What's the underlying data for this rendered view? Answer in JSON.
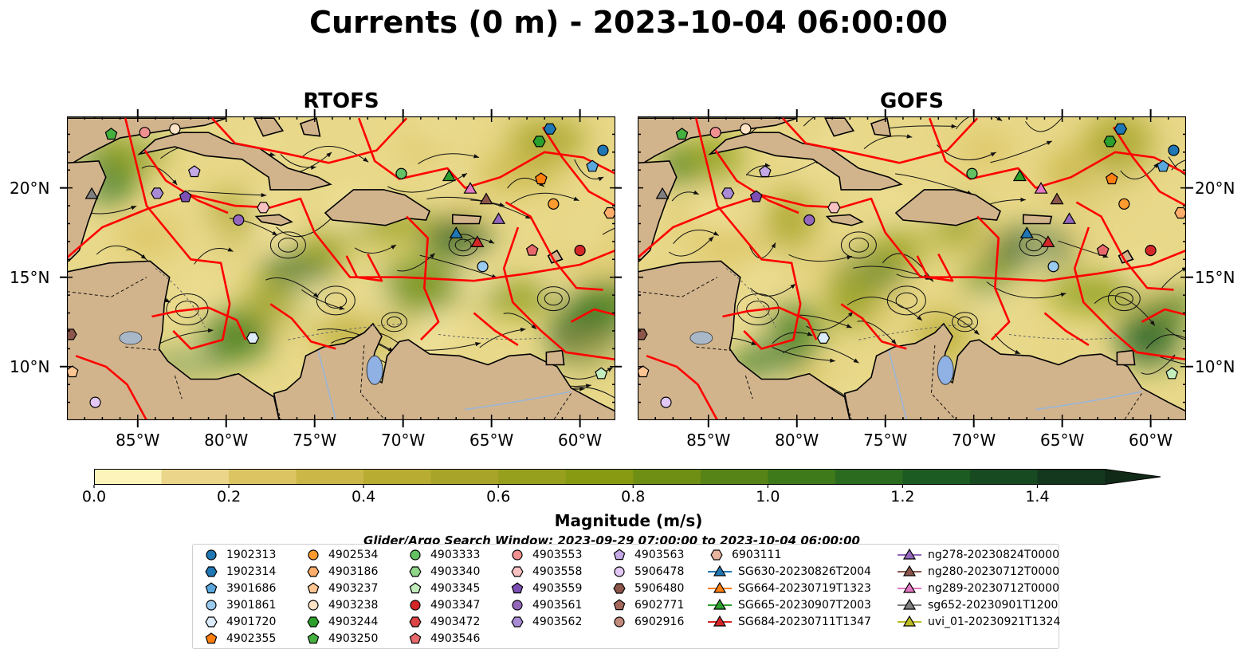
{
  "title": "Currents (0 m) - 2023-10-04 06:00:00",
  "panels": [
    {
      "title": "RTOFS"
    },
    {
      "title": "GOFS"
    }
  ],
  "map": {
    "lon_range": [
      -89,
      -58
    ],
    "lat_range": [
      7,
      24
    ],
    "xticks": [
      "85°W",
      "80°W",
      "75°W",
      "70°W",
      "65°W",
      "60°W"
    ],
    "xtick_values": [
      -85,
      -80,
      -75,
      -70,
      -65,
      -60
    ],
    "yticks": [
      "20°N",
      "15°N",
      "10°N"
    ],
    "ytick_values": [
      20,
      15,
      10
    ],
    "land_color": "#d2b48c",
    "track_color": "#ff0000"
  },
  "colorbar": {
    "title": "Magnitude (m/s)",
    "min": 0.0,
    "max": 1.5,
    "step": 0.1,
    "tick_labels": [
      "0.0",
      "0.2",
      "0.4",
      "0.6",
      "0.8",
      "1.0",
      "1.2",
      "1.4"
    ],
    "colors": [
      "#fcf4bb",
      "#ead58a",
      "#dcc463",
      "#cab748",
      "#b8ac33",
      "#a8a42a",
      "#97a01d",
      "#879a12",
      "#6f8f14",
      "#578417",
      "#3f7a1a",
      "#2b6b20",
      "#1c5c22",
      "#174a21",
      "#13381d",
      "#112a17"
    ]
  },
  "search_window": "Glider/Argo Search Window: 2023-09-29 07:00:00 to 2023-10-04 06:00:00",
  "legend": {
    "items": [
      {
        "label": "1902313",
        "marker": "circle",
        "color": "#1f77b4"
      },
      {
        "label": "1902314",
        "marker": "hexagon",
        "color": "#1f77b4"
      },
      {
        "label": "3901686",
        "marker": "pentagon",
        "color": "#5aa7dd"
      },
      {
        "label": "3901861",
        "marker": "circle",
        "color": "#9ccbf0"
      },
      {
        "label": "4901720",
        "marker": "hexagon",
        "color": "#dcecfa"
      },
      {
        "label": "4902355",
        "marker": "pentagon",
        "color": "#ff7f0e"
      },
      {
        "label": "4902534",
        "marker": "circle",
        "color": "#ff9a2e"
      },
      {
        "label": "4903186",
        "marker": "hexagon",
        "color": "#ffad6a"
      },
      {
        "label": "4903237",
        "marker": "pentagon",
        "color": "#ffc693"
      },
      {
        "label": "4903238",
        "marker": "circle",
        "color": "#ffe3c6"
      },
      {
        "label": "4903244",
        "marker": "hexagon",
        "color": "#2ca02c"
      },
      {
        "label": "4903250",
        "marker": "pentagon",
        "color": "#45b03e"
      },
      {
        "label": "4903333",
        "marker": "circle",
        "color": "#62c162"
      },
      {
        "label": "4903340",
        "marker": "hexagon",
        "color": "#8fd68a"
      },
      {
        "label": "4903345",
        "marker": "pentagon",
        "color": "#c4edbe"
      },
      {
        "label": "4903347",
        "marker": "circle",
        "color": "#d62728"
      },
      {
        "label": "4903472",
        "marker": "hexagon",
        "color": "#dd4445"
      },
      {
        "label": "4903546",
        "marker": "pentagon",
        "color": "#e8696b"
      },
      {
        "label": "4903553",
        "marker": "circle",
        "color": "#f09090"
      },
      {
        "label": "4903558",
        "marker": "hexagon",
        "color": "#f9c2c2"
      },
      {
        "label": "4903559",
        "marker": "pentagon",
        "color": "#7b4fb3"
      },
      {
        "label": "4903561",
        "marker": "circle",
        "color": "#9467bd"
      },
      {
        "label": "4903562",
        "marker": "hexagon",
        "color": "#a98bd5"
      },
      {
        "label": "4903563",
        "marker": "pentagon",
        "color": "#c4a9e6"
      },
      {
        "label": "5906478",
        "marker": "circle",
        "color": "#e3c8f5"
      },
      {
        "label": "5906480",
        "marker": "hexagon",
        "color": "#8c564b"
      },
      {
        "label": "6902771",
        "marker": "pentagon",
        "color": "#a4695c"
      },
      {
        "label": "6902916",
        "marker": "circle",
        "color": "#c28a7c"
      },
      {
        "label": "6903111",
        "marker": "hexagon",
        "color": "#e8b49f"
      },
      {
        "label": "SG630-20230826T2004",
        "marker": "triangle-line",
        "color": "#1f77b4"
      },
      {
        "label": "SG664-20230719T1323",
        "marker": "triangle-line",
        "color": "#ff7f0e"
      },
      {
        "label": "SG665-20230907T2003",
        "marker": "triangle-line",
        "color": "#2ca02c"
      },
      {
        "label": "SG684-20230711T1347",
        "marker": "triangle-line",
        "color": "#d62728"
      },
      {
        "label": "ng278-20230824T0000",
        "marker": "triangle-line",
        "color": "#9467bd"
      },
      {
        "label": "ng280-20230712T0000",
        "marker": "triangle-line",
        "color": "#8c564b"
      },
      {
        "label": "ng289-20230712T0000",
        "marker": "triangle-line",
        "color": "#e377c2"
      },
      {
        "label": "sg652-20230901T1200",
        "marker": "triangle-line",
        "color": "#7f7f7f"
      },
      {
        "label": "uvi_01-20230921T1324",
        "marker": "triangle-line",
        "color": "#bcbd22"
      }
    ]
  },
  "floats": [
    {
      "label": "1902313",
      "lon": -58.7,
      "lat": 22.1,
      "marker": "circle",
      "color": "#1f77b4"
    },
    {
      "label": "1902314",
      "lon": -61.7,
      "lat": 23.3,
      "marker": "hexagon",
      "color": "#1f77b4"
    },
    {
      "label": "3901686",
      "lon": -59.3,
      "lat": 21.2,
      "marker": "pentagon",
      "color": "#5aa7dd"
    },
    {
      "label": "3901861",
      "lon": -65.5,
      "lat": 15.6,
      "marker": "circle",
      "color": "#9ccbf0"
    },
    {
      "label": "4901720",
      "lon": -78.5,
      "lat": 11.6,
      "marker": "hexagon",
      "color": "#dcecfa"
    },
    {
      "label": "4902355",
      "lon": -62.2,
      "lat": 20.5,
      "marker": "pentagon",
      "color": "#ff7f0e"
    },
    {
      "label": "4902534",
      "lon": -61.5,
      "lat": 19.1,
      "marker": "circle",
      "color": "#ff9a2e"
    },
    {
      "label": "4903238",
      "lon": -82.9,
      "lat": 23.3,
      "marker": "circle",
      "color": "#ffe3c6"
    },
    {
      "label": "4903244",
      "lon": -62.3,
      "lat": 22.6,
      "marker": "hexagon",
      "color": "#2ca02c"
    },
    {
      "label": "4903250",
      "lon": -86.5,
      "lat": 23.0,
      "marker": "pentagon",
      "color": "#45b03e"
    },
    {
      "label": "4903333",
      "lon": -70.1,
      "lat": 20.8,
      "marker": "circle",
      "color": "#62c162"
    },
    {
      "label": "4903345",
      "lon": -58.8,
      "lat": 9.6,
      "marker": "pentagon",
      "color": "#c4edbe"
    },
    {
      "label": "4903347",
      "lon": -60.0,
      "lat": 16.5,
      "marker": "circle",
      "color": "#d62728"
    },
    {
      "label": "4903553",
      "lon": -84.6,
      "lat": 23.1,
      "marker": "circle",
      "color": "#f09090"
    },
    {
      "label": "4903558",
      "lon": -77.9,
      "lat": 18.9,
      "marker": "hexagon",
      "color": "#f9c2c2"
    },
    {
      "label": "4903559",
      "lon": -82.3,
      "lat": 19.5,
      "marker": "pentagon",
      "color": "#7b4fb3"
    },
    {
      "label": "4903561",
      "lon": -79.3,
      "lat": 18.2,
      "marker": "circle",
      "color": "#9467bd"
    },
    {
      "label": "4903563",
      "lon": -81.8,
      "lat": 20.9,
      "marker": "pentagon",
      "color": "#c4a9e6"
    },
    {
      "label": "4903546",
      "lon": -62.7,
      "lat": 16.5,
      "marker": "pentagon",
      "color": "#e8696b"
    },
    {
      "label": "5906478",
      "lon": -87.4,
      "lat": 8.0,
      "marker": "circle",
      "color": "#e3c8f5"
    },
    {
      "label": "4903186",
      "lon": -58.3,
      "lat": 18.6,
      "marker": "hexagon",
      "color": "#ffad6a"
    },
    {
      "label": "4903237",
      "lon": -88.7,
      "lat": 9.7,
      "marker": "pentagon",
      "color": "#ffc693"
    },
    {
      "label": "5906480",
      "lon": -88.8,
      "lat": 11.8,
      "marker": "hexagon",
      "color": "#8c564b"
    },
    {
      "label": "4903562",
      "lon": -83.9,
      "lat": 19.7,
      "marker": "hexagon",
      "color": "#a98bd5"
    }
  ],
  "gliders": [
    {
      "label": "SG630-20230826T2004",
      "lon": -67.0,
      "lat": 17.4,
      "color": "#1f77b4"
    },
    {
      "label": "SG665-20230907T2003",
      "lon": -67.4,
      "lat": 20.6,
      "color": "#2ca02c"
    },
    {
      "label": "ng289-20230712T0000",
      "lon": -66.2,
      "lat": 19.9,
      "color": "#e377c2"
    },
    {
      "label": "ng280-20230712T0000",
      "lon": -65.3,
      "lat": 19.3,
      "color": "#8c564b"
    },
    {
      "label": "ng278-20230824T0000",
      "lon": -64.6,
      "lat": 18.2,
      "color": "#9467bd"
    },
    {
      "label": "SG684-20230711T1347",
      "lon": -65.8,
      "lat": 16.9,
      "color": "#d62728"
    },
    {
      "label": "sg652-20230901T1200",
      "lon": -87.6,
      "lat": 19.6,
      "color": "#7f7f7f"
    }
  ]
}
